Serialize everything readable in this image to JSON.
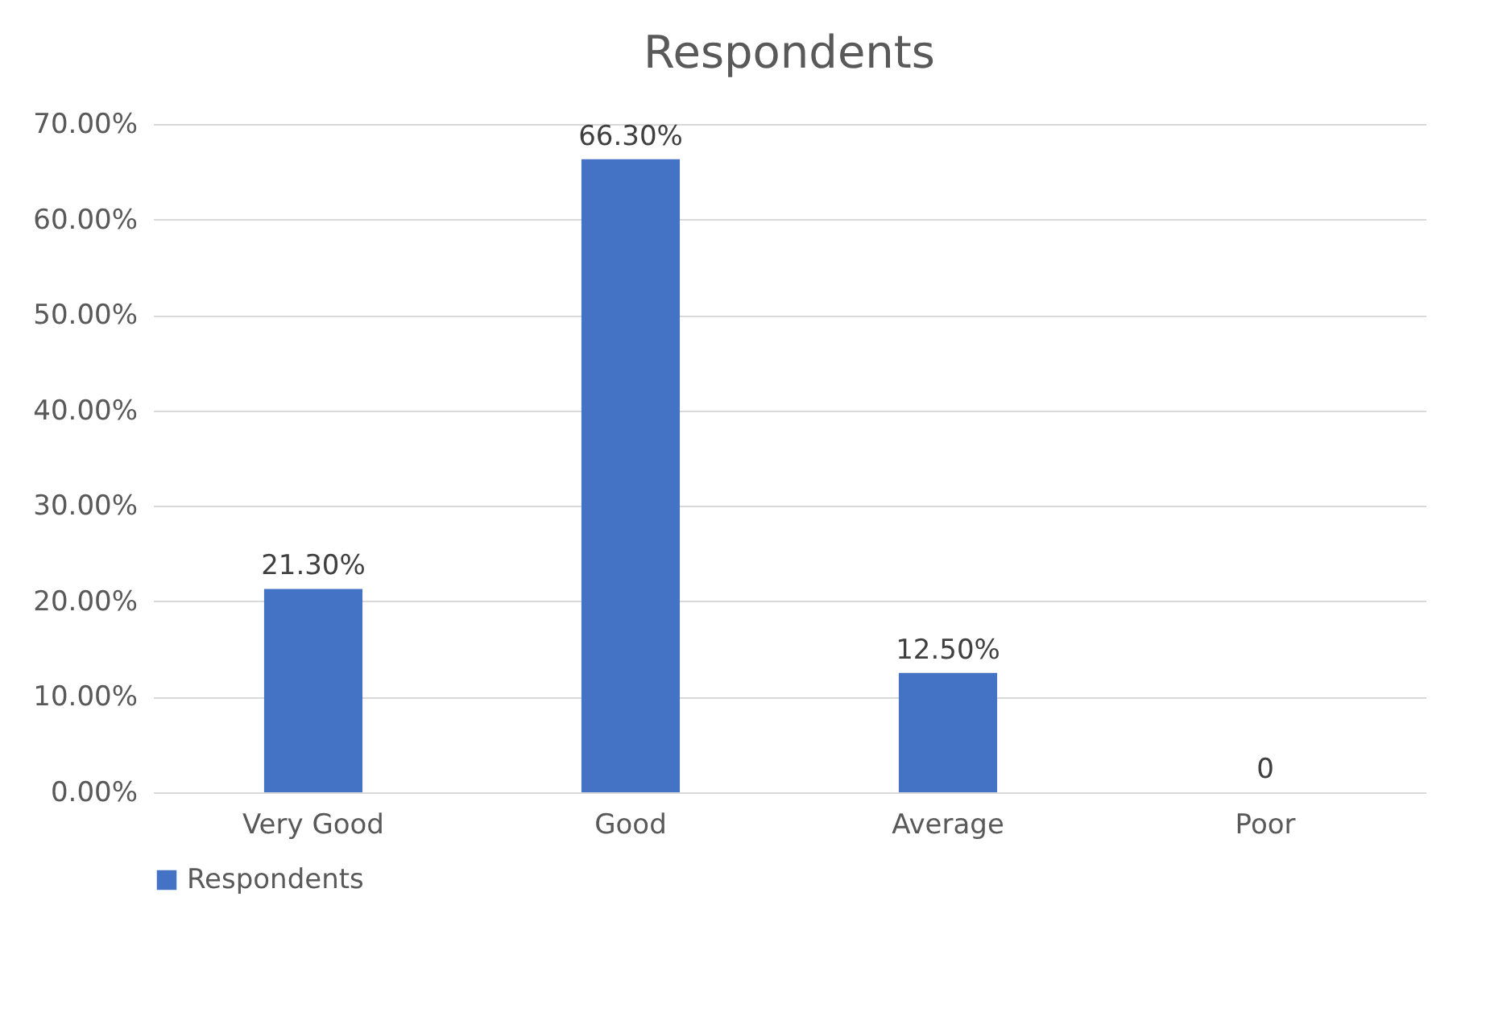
{
  "chart_data": {
    "type": "bar",
    "title": "Respondents",
    "categories": [
      "Very Good",
      "Good",
      "Average",
      "Poor"
    ],
    "series": [
      {
        "name": "Respondents",
        "color": "#4472c4",
        "values": [
          21.3,
          66.3,
          12.5,
          0
        ],
        "value_labels": [
          "21.30%",
          "66.30%",
          "12.50%",
          "0"
        ]
      }
    ],
    "ylim": [
      0,
      70
    ],
    "yticks": [
      {
        "value": 0,
        "label": "0.00%"
      },
      {
        "value": 10,
        "label": "10.00%"
      },
      {
        "value": 20,
        "label": "20.00%"
      },
      {
        "value": 30,
        "label": "30.00%"
      },
      {
        "value": 40,
        "label": "40.00%"
      },
      {
        "value": 50,
        "label": "50.00%"
      },
      {
        "value": 60,
        "label": "60.00%"
      },
      {
        "value": 70,
        "label": "70.00%"
      }
    ],
    "grid": "y",
    "legend": "bottom"
  }
}
